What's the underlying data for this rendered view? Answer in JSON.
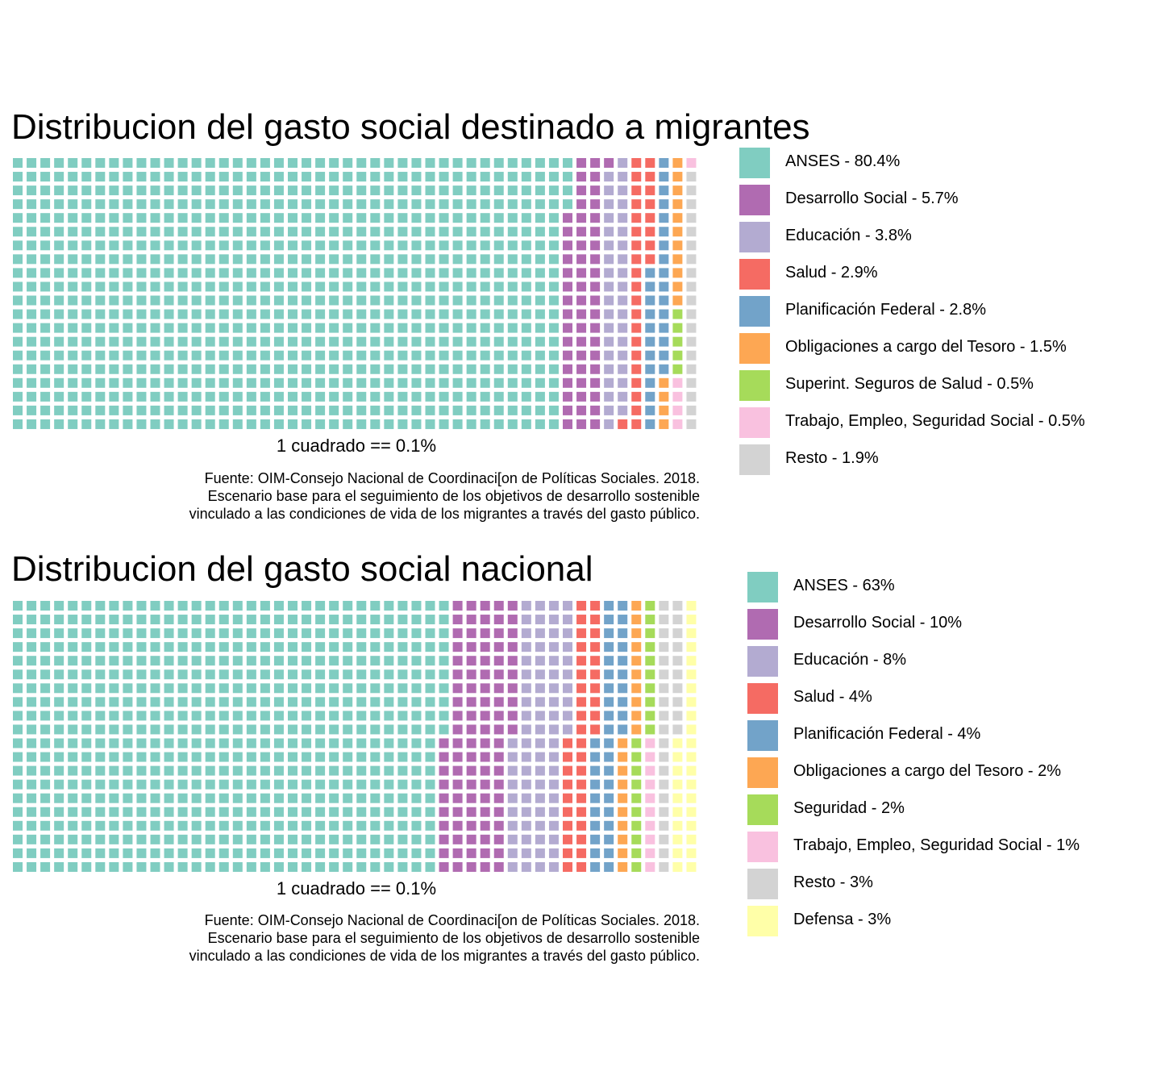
{
  "chart_data": [
    {
      "type": "waffle",
      "title": "Distribucion del gasto social destinado a migrantes",
      "unit_label": "1 cuadrado == 0.1%",
      "grid_rows": 20,
      "caption": [
        "Fuente: OIM-Consejo Nacional de Coordinaci[on de Políticas Sociales. 2018.",
        "Escenario base para el seguimiento de los objetivos de desarrollo sostenible",
        "vinculado a las condiciones de vida de los migrantes a través del gasto público."
      ],
      "series": [
        {
          "name": "ANSES - 80.4%",
          "value": 80.4,
          "squares": 804,
          "color": "#80CDC1"
        },
        {
          "name": "Desarrollo Social - 5.7%",
          "value": 5.7,
          "squares": 57,
          "color": "#B06BB1"
        },
        {
          "name": "Educación - 3.8%",
          "value": 3.8,
          "squares": 38,
          "color": "#B3ABD1"
        },
        {
          "name": "Salud - 2.9%",
          "value": 2.9,
          "squares": 29,
          "color": "#F56B63"
        },
        {
          "name": "Planificación Federal - 2.8%",
          "value": 2.8,
          "squares": 28,
          "color": "#72A3C9"
        },
        {
          "name": "Obligaciones a cargo del Tesoro - 1.5%",
          "value": 1.5,
          "squares": 15,
          "color": "#FDA753"
        },
        {
          "name": "Superint. Seguros de Salud - 0.5%",
          "value": 0.5,
          "squares": 5,
          "color": "#A6DB5A"
        },
        {
          "name": "Trabajo, Empleo, Seguridad Social - 0.5%",
          "value": 0.5,
          "squares": 5,
          "color": "#F9C1DF"
        },
        {
          "name": "Resto - 1.9%",
          "value": 1.9,
          "squares": 19,
          "color": "#D3D3D3"
        }
      ]
    },
    {
      "type": "waffle",
      "title": "Distribucion del gasto social nacional",
      "unit_label": "1 cuadrado == 0.1%",
      "grid_rows": 20,
      "caption": [
        "Fuente: OIM-Consejo Nacional de Coordinaci[on de Políticas Sociales. 2018.",
        "Escenario base para el seguimiento de los objetivos de desarrollo sostenible",
        "vinculado a las condiciones de vida de los migrantes a través del gasto público."
      ],
      "series": [
        {
          "name": "ANSES - 63%",
          "value": 63,
          "squares": 630,
          "color": "#80CDC1"
        },
        {
          "name": "Desarrollo Social - 10%",
          "value": 10,
          "squares": 100,
          "color": "#B06BB1"
        },
        {
          "name": "Educación - 8%",
          "value": 8,
          "squares": 80,
          "color": "#B3ABD1"
        },
        {
          "name": "Salud - 4%",
          "value": 4,
          "squares": 40,
          "color": "#F56B63"
        },
        {
          "name": "Planificación Federal - 4%",
          "value": 4,
          "squares": 40,
          "color": "#72A3C9"
        },
        {
          "name": "Obligaciones a cargo del Tesoro - 2%",
          "value": 2,
          "squares": 20,
          "color": "#FDA753"
        },
        {
          "name": "Seguridad - 2%",
          "value": 2,
          "squares": 20,
          "color": "#A6DB5A"
        },
        {
          "name": "Trabajo, Empleo, Seguridad Social - 1%",
          "value": 1,
          "squares": 10,
          "color": "#F9C1DF"
        },
        {
          "name": "Resto - 3%",
          "value": 3,
          "squares": 30,
          "color": "#D3D3D3"
        },
        {
          "name": "Defensa - 3%",
          "value": 3,
          "squares": 30,
          "color": "#FFFFA8"
        }
      ]
    }
  ]
}
